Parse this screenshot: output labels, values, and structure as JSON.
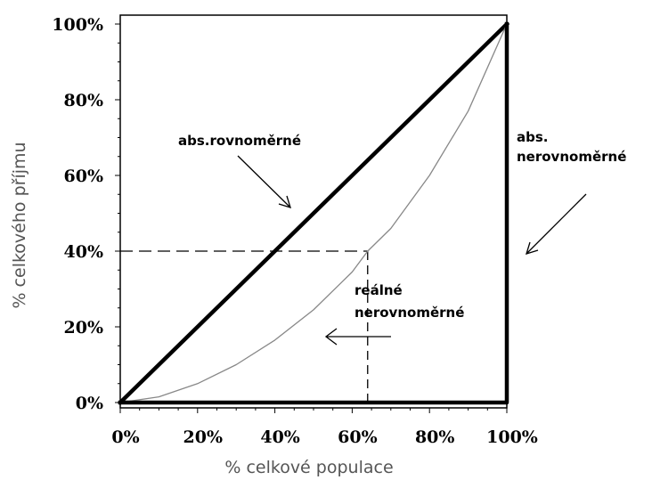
{
  "chart_data": {
    "type": "line",
    "xlabel": "% celkové populace",
    "ylabel": "% celkového příjmu",
    "xlim": [
      0,
      100
    ],
    "ylim": [
      0,
      100
    ],
    "x_ticks": [
      "0%",
      "20%",
      "40%",
      "60%",
      "80%",
      "100%"
    ],
    "y_ticks": [
      "0%",
      "20%",
      "40%",
      "60%",
      "80%",
      "100%"
    ],
    "grid": false,
    "series": [
      {
        "key": "equality",
        "x": [
          0,
          100
        ],
        "y": [
          0,
          100
        ],
        "color": "#000000"
      },
      {
        "key": "lorenz",
        "x": [
          0,
          10,
          20,
          30,
          40,
          50,
          60,
          64,
          70,
          80,
          90,
          100
        ],
        "y": [
          0,
          1.5,
          5,
          10,
          16.5,
          24.5,
          34.5,
          40,
          46,
          60,
          77,
          100
        ],
        "color": "#888888"
      },
      {
        "key": "inequality",
        "x": [
          0,
          100,
          100
        ],
        "y": [
          0,
          0,
          100
        ],
        "color": "#000000"
      }
    ],
    "reference_point": {
      "x": 64,
      "y": 40
    },
    "annotations": [
      {
        "key": "abs_equal",
        "lines": [
          "abs.rovnoměrné"
        ]
      },
      {
        "key": "abs_unequal",
        "lines": [
          "abs.",
          "nerovnoměrné"
        ]
      },
      {
        "key": "real",
        "lines": [
          "reálné",
          "nerovnoměrné"
        ]
      }
    ]
  }
}
